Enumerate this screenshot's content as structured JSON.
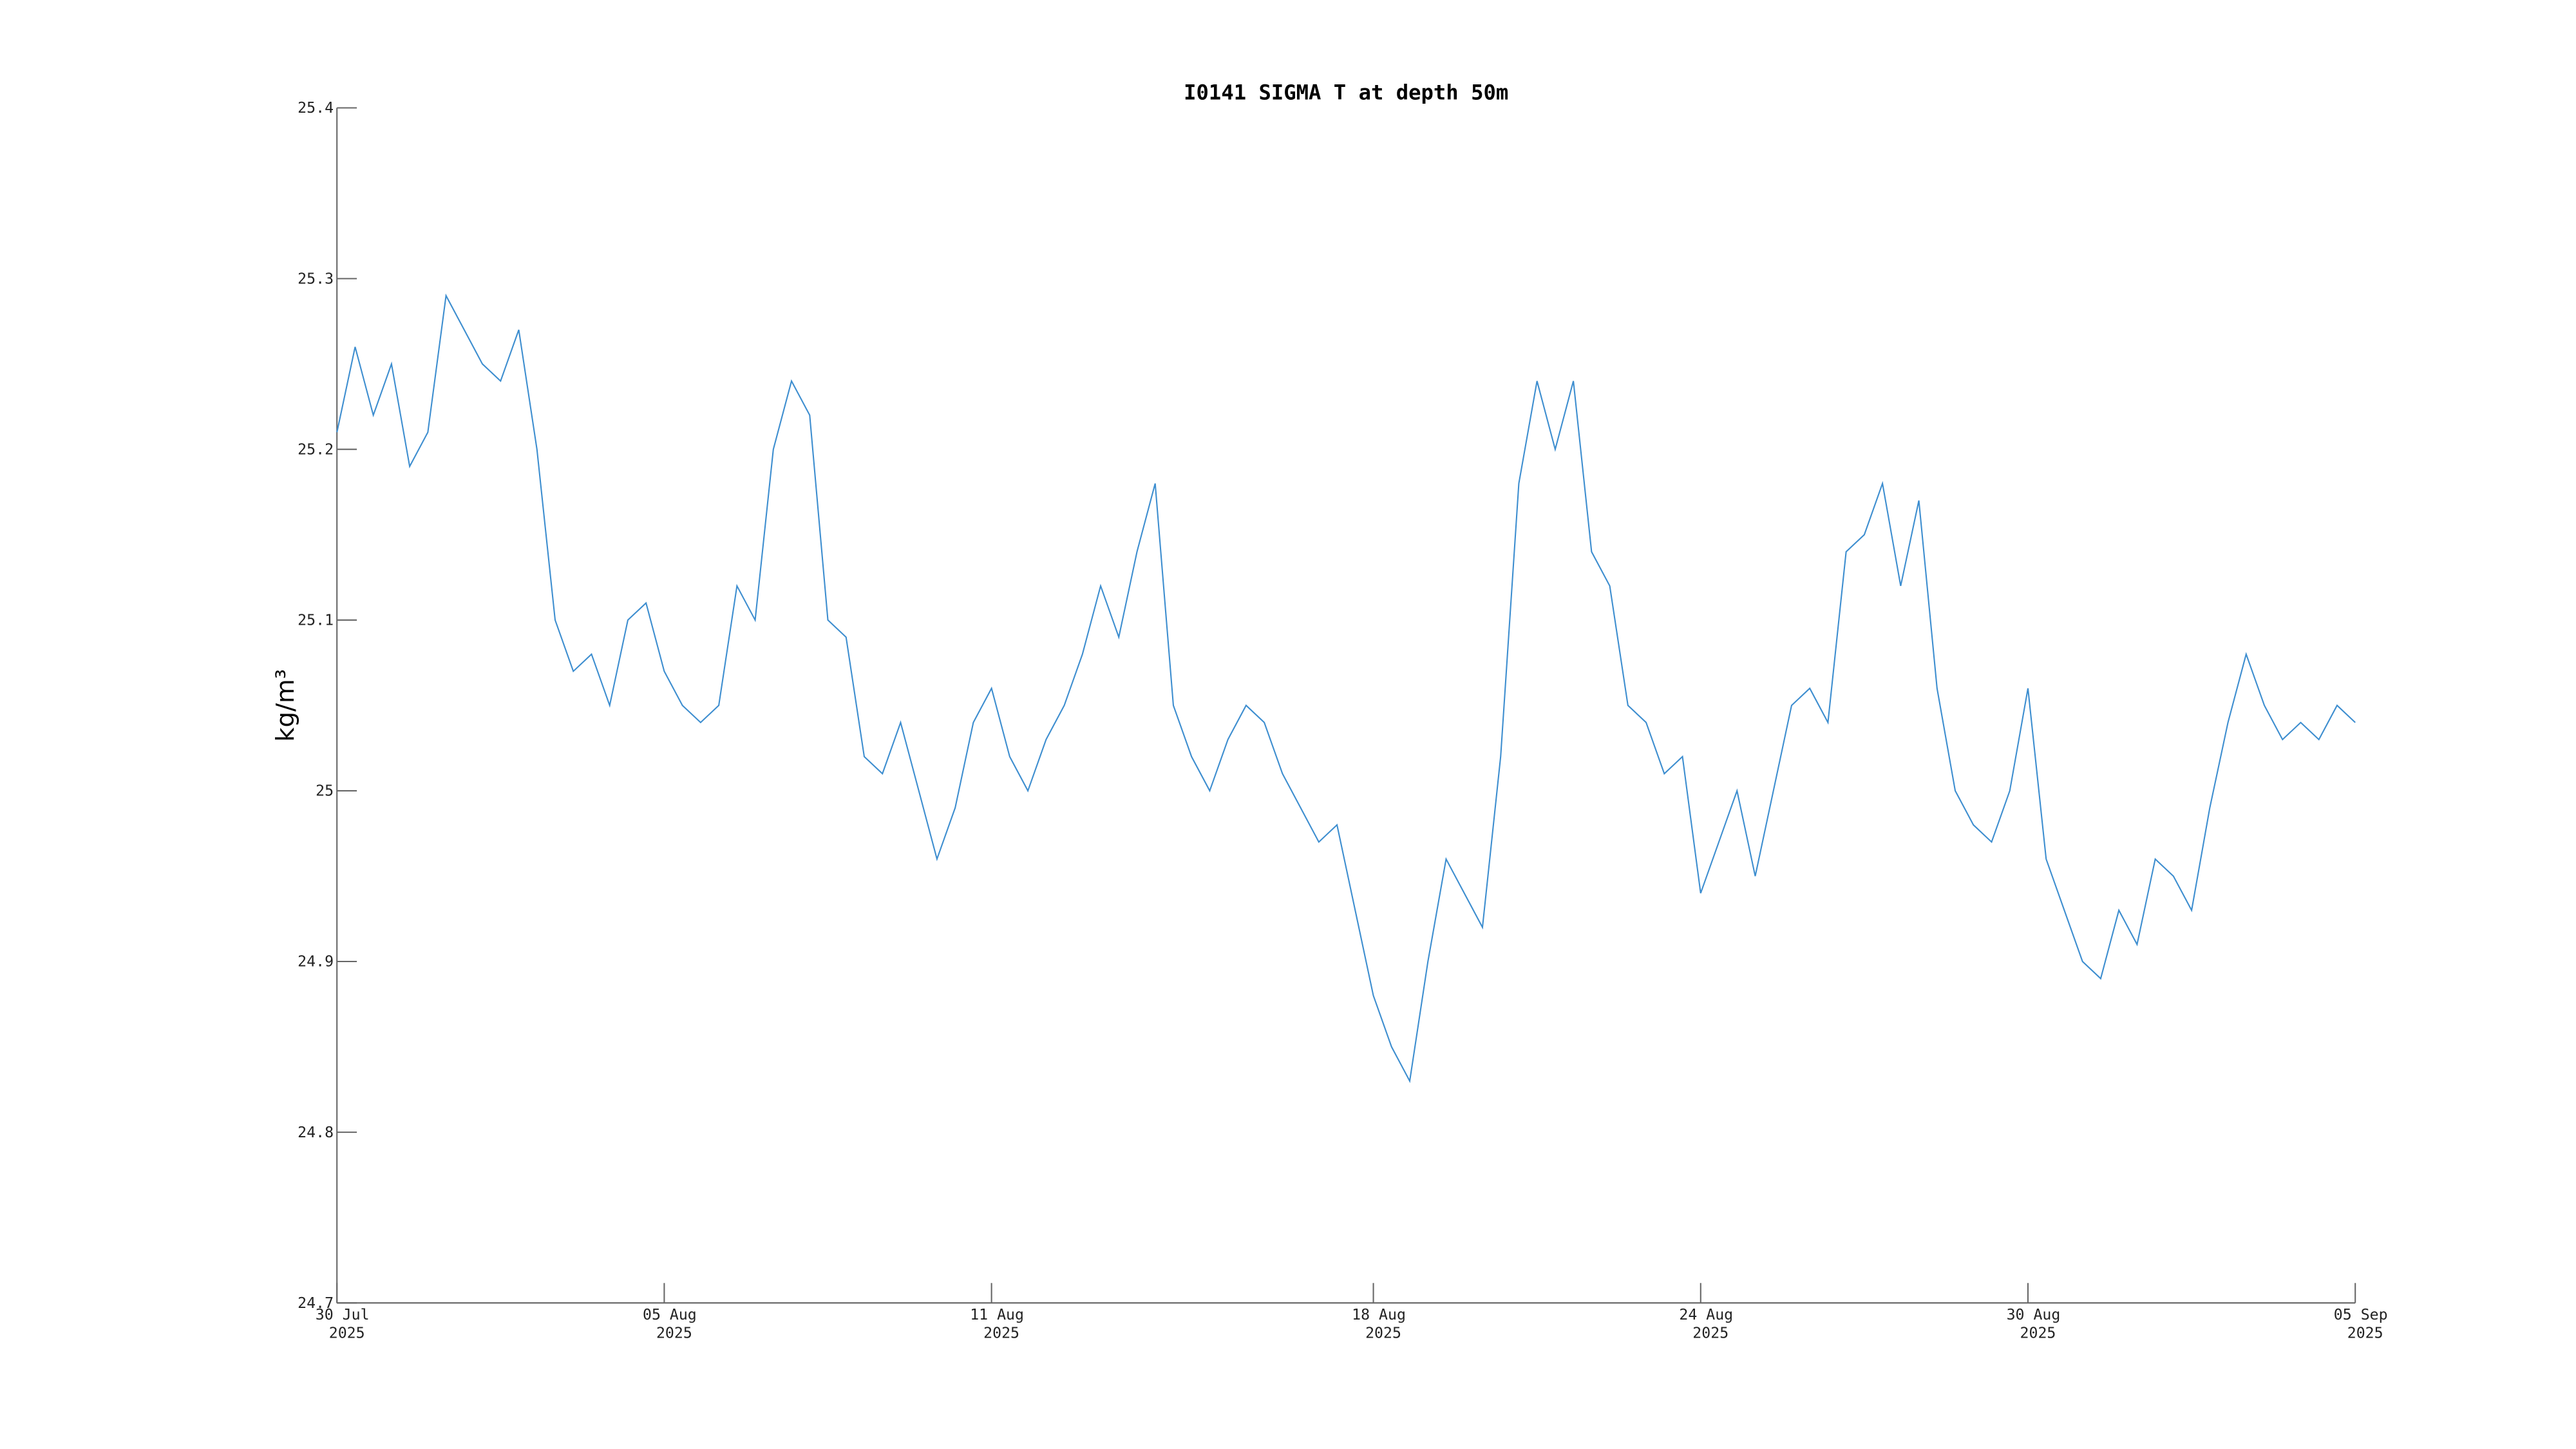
{
  "chart_data": {
    "type": "line",
    "title": "I0141 SIGMA T at depth 50m",
    "y_label": "kg/m³",
    "color": "#3c8dcf",
    "x": [
      "2025-07-30T00:00",
      "2025-07-30T08:00",
      "2025-07-30T16:00",
      "2025-07-31T00:00",
      "2025-07-31T08:00",
      "2025-07-31T16:00",
      "2025-08-01T00:00",
      "2025-08-01T08:00",
      "2025-08-01T16:00",
      "2025-08-02T00:00",
      "2025-08-02T08:00",
      "2025-08-02T16:00",
      "2025-08-03T00:00",
      "2025-08-03T08:00",
      "2025-08-03T16:00",
      "2025-08-04T00:00",
      "2025-08-04T08:00",
      "2025-08-04T16:00",
      "2025-08-05T00:00",
      "2025-08-05T08:00",
      "2025-08-05T16:00",
      "2025-08-06T00:00",
      "2025-08-06T08:00",
      "2025-08-06T16:00",
      "2025-08-07T00:00",
      "2025-08-07T08:00",
      "2025-08-07T16:00",
      "2025-08-08T00:00",
      "2025-08-08T08:00",
      "2025-08-08T16:00",
      "2025-08-09T00:00",
      "2025-08-09T08:00",
      "2025-08-09T16:00",
      "2025-08-10T00:00",
      "2025-08-10T08:00",
      "2025-08-10T16:00",
      "2025-08-11T00:00",
      "2025-08-11T08:00",
      "2025-08-11T16:00",
      "2025-08-12T00:00",
      "2025-08-12T08:00",
      "2025-08-12T16:00",
      "2025-08-13T00:00",
      "2025-08-13T08:00",
      "2025-08-13T16:00",
      "2025-08-14T00:00",
      "2025-08-14T08:00",
      "2025-08-14T16:00",
      "2025-08-15T00:00",
      "2025-08-15T08:00",
      "2025-08-15T16:00",
      "2025-08-16T00:00",
      "2025-08-16T08:00",
      "2025-08-16T16:00",
      "2025-08-17T00:00",
      "2025-08-17T08:00",
      "2025-08-17T16:00",
      "2025-08-18T00:00",
      "2025-08-18T08:00",
      "2025-08-18T16:00",
      "2025-08-19T00:00",
      "2025-08-19T08:00",
      "2025-08-19T16:00",
      "2025-08-20T00:00",
      "2025-08-20T08:00",
      "2025-08-20T16:00",
      "2025-08-21T00:00",
      "2025-08-21T08:00",
      "2025-08-21T16:00",
      "2025-08-22T00:00",
      "2025-08-22T08:00",
      "2025-08-22T16:00",
      "2025-08-23T00:00",
      "2025-08-23T08:00",
      "2025-08-23T16:00",
      "2025-08-24T00:00",
      "2025-08-24T08:00",
      "2025-08-24T16:00",
      "2025-08-25T00:00",
      "2025-08-25T08:00",
      "2025-08-25T16:00",
      "2025-08-26T00:00",
      "2025-08-26T08:00",
      "2025-08-26T16:00",
      "2025-08-27T00:00",
      "2025-08-27T08:00",
      "2025-08-27T16:00",
      "2025-08-28T00:00",
      "2025-08-28T08:00",
      "2025-08-28T16:00",
      "2025-08-29T00:00",
      "2025-08-29T08:00",
      "2025-08-29T16:00",
      "2025-08-30T00:00",
      "2025-08-30T08:00",
      "2025-08-30T16:00",
      "2025-08-31T00:00",
      "2025-08-31T08:00",
      "2025-08-31T16:00",
      "2025-09-01T00:00",
      "2025-09-01T08:00",
      "2025-09-01T16:00",
      "2025-09-02T00:00",
      "2025-09-02T08:00",
      "2025-09-02T16:00",
      "2025-09-03T00:00",
      "2025-09-03T08:00",
      "2025-09-03T16:00",
      "2025-09-04T00:00",
      "2025-09-04T08:00",
      "2025-09-04T16:00",
      "2025-09-05T00:00"
    ],
    "values": [
      25.21,
      25.26,
      25.22,
      25.25,
      25.19,
      25.21,
      25.29,
      25.27,
      25.25,
      25.24,
      25.27,
      25.2,
      25.1,
      25.07,
      25.08,
      25.05,
      25.1,
      25.11,
      25.07,
      25.05,
      25.04,
      25.05,
      25.12,
      25.1,
      25.2,
      25.24,
      25.22,
      25.1,
      25.09,
      25.02,
      25.01,
      25.04,
      25.0,
      24.96,
      24.99,
      25.04,
      25.06,
      25.02,
      25.0,
      25.03,
      25.05,
      25.08,
      25.12,
      25.09,
      25.14,
      25.18,
      25.05,
      25.02,
      25.0,
      25.03,
      25.05,
      25.04,
      25.01,
      24.99,
      24.97,
      24.98,
      24.93,
      24.88,
      24.85,
      24.83,
      24.9,
      24.96,
      24.94,
      24.92,
      25.02,
      25.18,
      25.24,
      25.2,
      25.24,
      25.14,
      25.12,
      25.05,
      25.04,
      25.01,
      25.02,
      24.94,
      24.97,
      25.0,
      24.95,
      25.0,
      25.05,
      25.06,
      25.04,
      25.14,
      25.15,
      25.18,
      25.12,
      25.17,
      25.06,
      25.0,
      24.98,
      24.97,
      25.0,
      25.06,
      24.96,
      24.93,
      24.9,
      24.89,
      24.93,
      24.91,
      24.96,
      24.95,
      24.93,
      24.99,
      25.04,
      25.08,
      25.05,
      25.03,
      25.04,
      25.03,
      25.05,
      25.04
    ],
    "xlim": [
      "2025-07-30",
      "2025-09-05"
    ],
    "xticks": [
      {
        "value": "2025-07-30",
        "label": "30 Jul 2025"
      },
      {
        "value": "2025-08-05",
        "label": "05 Aug 2025"
      },
      {
        "value": "2025-08-11",
        "label": "11 Aug 2025"
      },
      {
        "value": "2025-08-18",
        "label": "18 Aug 2025"
      },
      {
        "value": "2025-08-24",
        "label": "24 Aug 2025"
      },
      {
        "value": "2025-08-30",
        "label": "30 Aug 2025"
      },
      {
        "value": "2025-09-05",
        "label": "05 Sep 2025"
      }
    ],
    "ylim": [
      24.7,
      25.4
    ],
    "yticks": [
      24.7,
      24.8,
      24.9,
      25,
      25.1,
      25.2,
      25.3,
      25.4
    ]
  }
}
